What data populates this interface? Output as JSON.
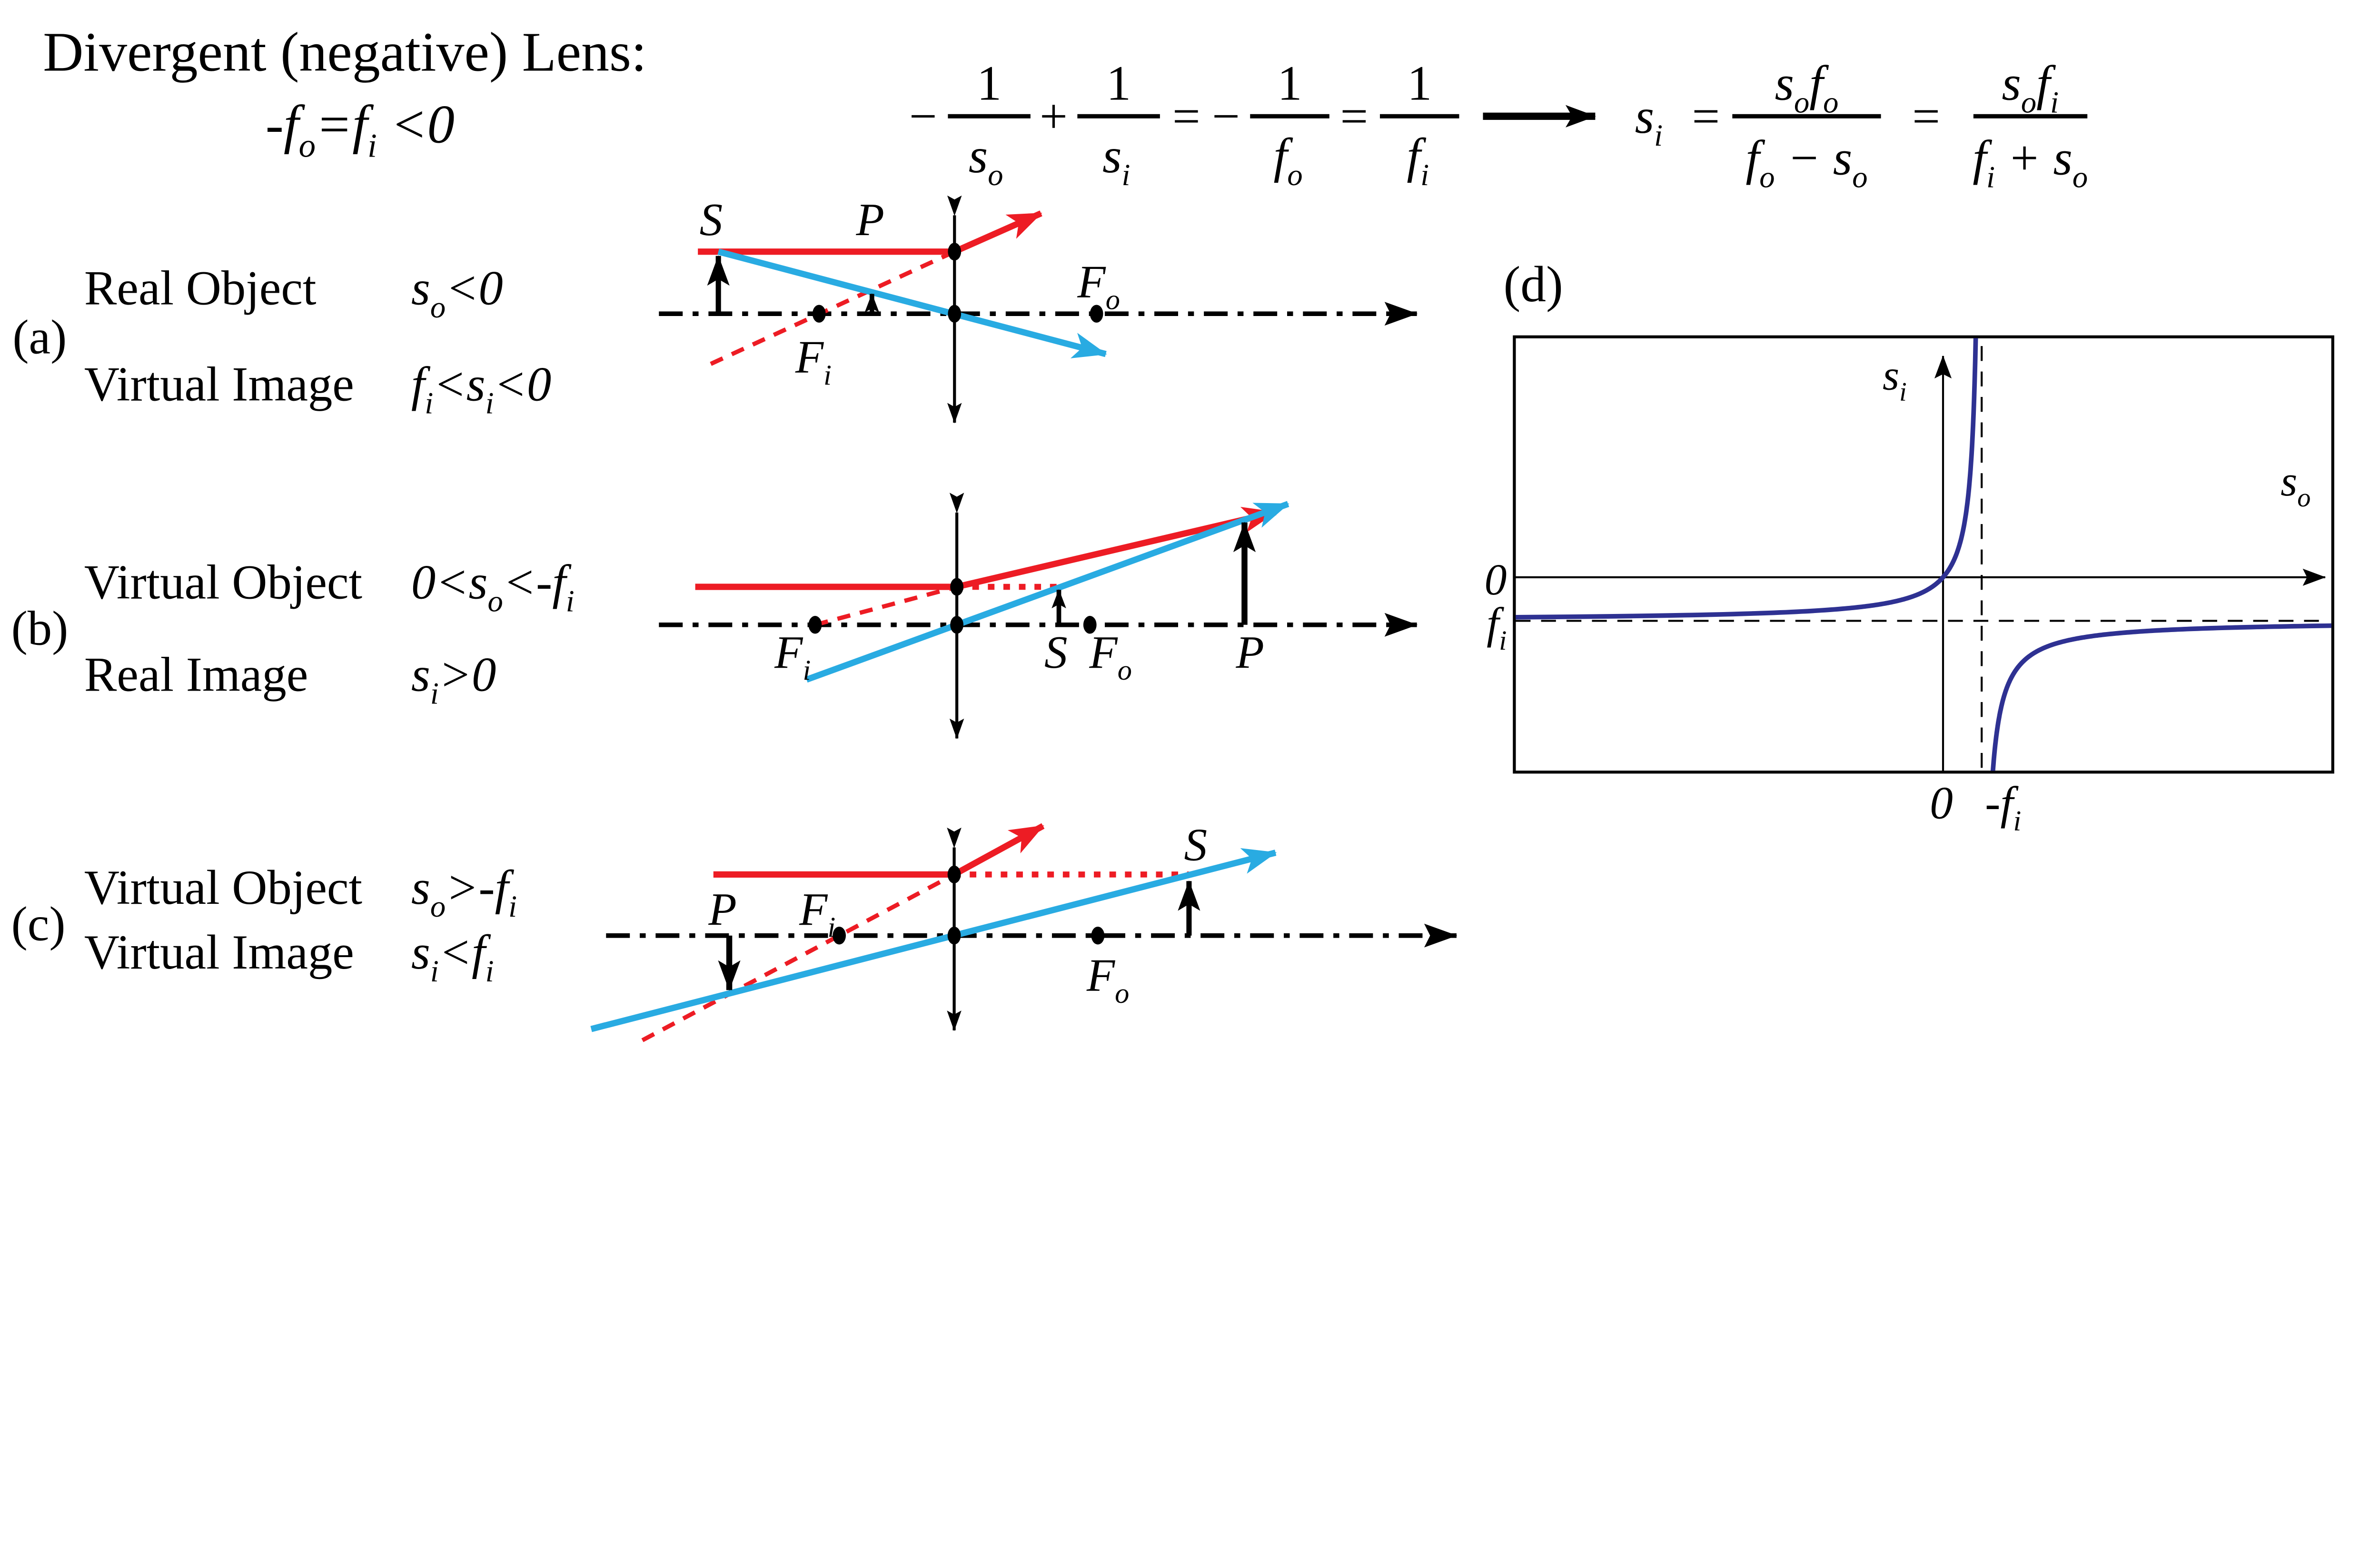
{
  "colors": {
    "red": "#ed1c24",
    "cyan": "#29abe2",
    "navy": "#2e3192",
    "black": "#000000"
  },
  "title": {
    "text": "Divergent (negative) Lens:",
    "condition": [
      {
        "t": "-"
      },
      {
        "t": "f"
      },
      {
        "t": "o",
        "sub": true
      },
      {
        "t": "="
      },
      {
        "t": "f"
      },
      {
        "t": "i",
        "sub": true
      },
      {
        "t": " <0"
      }
    ]
  },
  "equation": {
    "minus": "−",
    "plus": "+",
    "equals": "=",
    "one": "1",
    "arrow_note": "implies",
    "den_so": [
      {
        "t": "s"
      },
      {
        "t": "o",
        "sub": true
      }
    ],
    "den_si": [
      {
        "t": "s"
      },
      {
        "t": "i",
        "sub": true
      }
    ],
    "den_fo": [
      {
        "t": "f"
      },
      {
        "t": "o",
        "sub": true
      }
    ],
    "den_fi": [
      {
        "t": "f"
      },
      {
        "t": "i",
        "sub": true
      }
    ],
    "si": [
      {
        "t": "s"
      },
      {
        "t": "i",
        "sub": true
      }
    ],
    "num_sofo": [
      {
        "t": "s"
      },
      {
        "t": "o",
        "sub": true
      },
      {
        "t": "f"
      },
      {
        "t": "o",
        "sub": true
      }
    ],
    "den_fo_minus_so": [
      {
        "t": "f"
      },
      {
        "t": "o",
        "sub": true
      },
      {
        "t": " − s"
      },
      {
        "t": "o",
        "sub": true
      }
    ],
    "num_sofi": [
      {
        "t": "s"
      },
      {
        "t": "o",
        "sub": true
      },
      {
        "t": "f"
      },
      {
        "t": "i",
        "sub": true
      }
    ],
    "den_fi_plus_so": [
      {
        "t": "f"
      },
      {
        "t": "i",
        "sub": true
      },
      {
        "t": " + s"
      },
      {
        "t": "o",
        "sub": true
      }
    ]
  },
  "rows": [
    {
      "label": "(a)",
      "line1": "Real Object",
      "cond1": [
        {
          "t": "s"
        },
        {
          "t": "o",
          "sub": true
        },
        {
          "t": "<0"
        }
      ],
      "line2": "Virtual Image",
      "cond2": [
        {
          "t": "f"
        },
        {
          "t": "i",
          "sub": true
        },
        {
          "t": "<s"
        },
        {
          "t": "i",
          "sub": true
        },
        {
          "t": "<0"
        }
      ]
    },
    {
      "label": "(b)",
      "line1": "Virtual Object",
      "cond1": [
        {
          "t": "0<s"
        },
        {
          "t": "o",
          "sub": true
        },
        {
          "t": "<-f"
        },
        {
          "t": "i",
          "sub": true
        }
      ],
      "line2": "Real Image",
      "cond2": [
        {
          "t": "s"
        },
        {
          "t": "i",
          "sub": true
        },
        {
          "t": ">0"
        }
      ]
    },
    {
      "label": "(c)",
      "line1": "Virtual Object",
      "cond1": [
        {
          "t": "s"
        },
        {
          "t": "o",
          "sub": true
        },
        {
          "t": ">-f"
        },
        {
          "t": "i",
          "sub": true
        }
      ],
      "line2": "Virtual Image",
      "cond2": [
        {
          "t": "s"
        },
        {
          "t": "i",
          "sub": true
        },
        {
          "t": "<f"
        },
        {
          "t": "i",
          "sub": true
        }
      ]
    }
  ],
  "ray": {
    "S": "S",
    "P": "P",
    "Fi": [
      {
        "t": "F"
      },
      {
        "t": "i",
        "sub": true
      }
    ],
    "Fo": [
      {
        "t": "F"
      },
      {
        "t": "o",
        "sub": true
      }
    ]
  },
  "chart_data": {
    "type": "line",
    "panel_label": "(d)",
    "title": "",
    "xlabel": [
      {
        "t": "s"
      },
      {
        "t": "o",
        "sub": true
      }
    ],
    "ylabel": [
      {
        "t": "s"
      },
      {
        "t": "i",
        "sub": true
      }
    ],
    "x_ticks": {
      "origin": "0",
      "asymptote": [
        {
          "t": "-f"
        },
        {
          "t": "i",
          "sub": true
        }
      ]
    },
    "y_ticks": {
      "origin": "0",
      "asymptote": [
        {
          "t": "f"
        },
        {
          "t": "i",
          "sub": true
        }
      ]
    },
    "equation": "s_i = s_o f_i / (f_i + s_o)",
    "f_i_units": -1,
    "x_range_units": [
      -11.1,
      10.1
    ],
    "y_range_units": [
      -4.5,
      5.5
    ],
    "asymptotes": {
      "vertical": "s_o = -f_i",
      "horizontal": "s_i = f_i"
    },
    "branches": [
      {
        "name": "left",
        "u_range": [
          -11.094,
          0.8465
        ],
        "behavior": "approaches s_i=f_i from above as s_o→−∞, passes through origin, diverges to +∞ as s_o→(−f_i)−"
      },
      {
        "name": "right",
        "u_range": [
          1.2882,
          10.085
        ],
        "behavior": "rises from −∞ just right of s_o=−f_i and approaches s_i=f_i from below"
      }
    ],
    "grid": false,
    "legend": false
  }
}
